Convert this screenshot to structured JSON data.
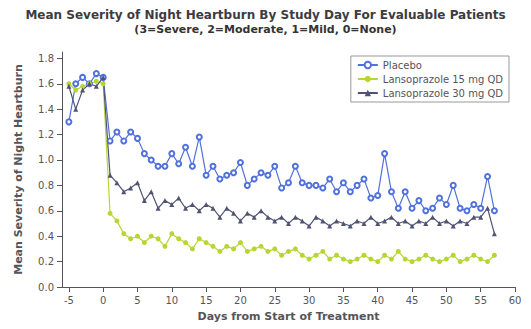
{
  "chart_data": {
    "type": "line",
    "title": "Mean Severity of Night Heartburn By Study Day For Evaluable Patients",
    "subtitle": "(3=Severe, 2=Moderate, 1=Mild, 0=None)",
    "xlabel": "Days from Start of Treatment",
    "ylabel": "Mean Severity of Night Heartburn",
    "xlim": [
      -6,
      60
    ],
    "ylim": [
      0.0,
      1.85
    ],
    "xticks": [
      -5,
      0,
      5,
      10,
      15,
      20,
      25,
      30,
      35,
      40,
      45,
      50,
      55,
      60
    ],
    "yticks": [
      {
        "value": 0.0,
        "label": "0.0"
      },
      0.2,
      0.4,
      0.6,
      0.8,
      {
        "value": 1.0,
        "label": "1.0"
      },
      1.2,
      1.4,
      1.6,
      1.8
    ],
    "grid": false,
    "legend": "upper right",
    "x": [
      -5,
      -4,
      -3,
      -2,
      -1,
      0,
      1,
      2,
      3,
      4,
      5,
      6,
      7,
      8,
      9,
      10,
      11,
      12,
      13,
      14,
      15,
      16,
      17,
      18,
      19,
      20,
      21,
      22,
      23,
      24,
      25,
      26,
      27,
      28,
      29,
      30,
      31,
      32,
      33,
      34,
      35,
      36,
      37,
      38,
      39,
      40,
      41,
      42,
      43,
      44,
      45,
      46,
      47,
      48,
      49,
      50,
      51,
      52,
      53,
      54,
      55,
      56,
      57
    ],
    "series": [
      {
        "name": "Placebo",
        "marker": "open circle",
        "values": [
          1.3,
          1.6,
          1.65,
          1.6,
          1.68,
          1.65,
          1.15,
          1.22,
          1.15,
          1.22,
          1.17,
          1.05,
          1.0,
          0.95,
          0.95,
          1.05,
          0.97,
          1.1,
          0.95,
          1.18,
          0.88,
          0.95,
          0.85,
          0.88,
          0.9,
          0.98,
          0.8,
          0.85,
          0.9,
          0.88,
          0.95,
          0.78,
          0.82,
          0.95,
          0.82,
          0.8,
          0.8,
          0.78,
          0.85,
          0.75,
          0.82,
          0.75,
          0.8,
          0.85,
          0.7,
          0.72,
          1.05,
          0.75,
          0.62,
          0.75,
          0.62,
          0.68,
          0.6,
          0.62,
          0.7,
          0.65,
          0.8,
          0.62,
          0.6,
          0.65,
          0.62,
          0.87,
          0.6
        ]
      },
      {
        "name": "Lansoprazole 15 mg QD",
        "marker": "circle",
        "values": [
          1.6,
          1.55,
          1.58,
          1.6,
          1.62,
          1.6,
          0.58,
          0.52,
          0.42,
          0.38,
          0.4,
          0.35,
          0.4,
          0.38,
          0.32,
          0.42,
          0.38,
          0.35,
          0.3,
          0.38,
          0.35,
          0.32,
          0.28,
          0.32,
          0.3,
          0.35,
          0.28,
          0.3,
          0.32,
          0.28,
          0.3,
          0.25,
          0.28,
          0.3,
          0.25,
          0.22,
          0.25,
          0.28,
          0.22,
          0.25,
          0.22,
          0.2,
          0.22,
          0.25,
          0.22,
          0.2,
          0.25,
          0.22,
          0.28,
          0.22,
          0.2,
          0.22,
          0.25,
          0.22,
          0.2,
          0.22,
          0.25,
          0.2,
          0.22,
          0.25,
          0.22,
          0.2,
          0.25
        ]
      },
      {
        "name": "Lansoprazole 30 mg QD",
        "marker": "triangle",
        "values": [
          1.58,
          1.4,
          1.55,
          1.6,
          1.58,
          1.65,
          0.88,
          0.82,
          0.75,
          0.78,
          0.82,
          0.68,
          0.75,
          0.62,
          0.68,
          0.65,
          0.7,
          0.62,
          0.65,
          0.6,
          0.65,
          0.62,
          0.55,
          0.62,
          0.58,
          0.52,
          0.58,
          0.55,
          0.6,
          0.55,
          0.52,
          0.55,
          0.5,
          0.55,
          0.52,
          0.48,
          0.55,
          0.52,
          0.48,
          0.52,
          0.5,
          0.48,
          0.52,
          0.5,
          0.55,
          0.5,
          0.52,
          0.55,
          0.5,
          0.52,
          0.48,
          0.52,
          0.5,
          0.55,
          0.5,
          0.52,
          0.48,
          0.52,
          0.5,
          0.55,
          0.55,
          0.62,
          0.42
        ]
      }
    ]
  }
}
